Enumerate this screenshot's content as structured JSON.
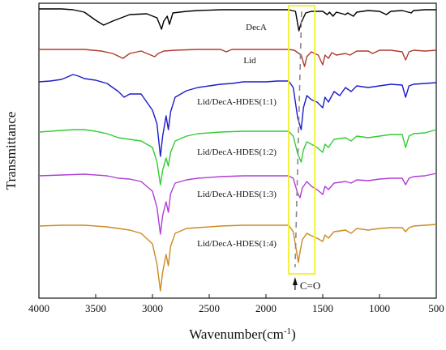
{
  "chart_data": {
    "type": "line",
    "title": "",
    "xlabel": "Wavenumber(cm",
    "xlabel_sup": "-1",
    "xlabel_end": ")",
    "ylabel": "Transmittance",
    "xlim": [
      4000,
      500
    ],
    "x_reversed": true,
    "y_ticks_shown": false,
    "grid": false,
    "x_ticks": [
      "4000",
      "3500",
      "3000",
      "2500",
      "2000",
      "1500",
      "1000",
      "500"
    ],
    "annotation": {
      "label": "C=O",
      "wavenumber": 1715,
      "box_range": [
        1800,
        1570
      ]
    },
    "series": [
      {
        "name": "DecA",
        "color": "#000000",
        "points": [
          [
            4000,
            3
          ],
          [
            3800,
            3
          ],
          [
            3700,
            4
          ],
          [
            3600,
            7
          ],
          [
            3500,
            17
          ],
          [
            3430,
            23
          ],
          [
            3350,
            18
          ],
          [
            3200,
            10
          ],
          [
            3050,
            9
          ],
          [
            2960,
            14
          ],
          [
            2920,
            28
          ],
          [
            2900,
            18
          ],
          [
            2870,
            12
          ],
          [
            2850,
            22
          ],
          [
            2820,
            8
          ],
          [
            2700,
            6
          ],
          [
            2600,
            5
          ],
          [
            2400,
            4
          ],
          [
            2200,
            4
          ],
          [
            2000,
            4
          ],
          [
            1800,
            4
          ],
          [
            1740,
            6
          ],
          [
            1710,
            30
          ],
          [
            1690,
            20
          ],
          [
            1650,
            8
          ],
          [
            1600,
            6
          ],
          [
            1500,
            6
          ],
          [
            1460,
            10
          ],
          [
            1440,
            7
          ],
          [
            1410,
            12
          ],
          [
            1380,
            7
          ],
          [
            1300,
            10
          ],
          [
            1280,
            8
          ],
          [
            1230,
            12
          ],
          [
            1200,
            7
          ],
          [
            1100,
            5
          ],
          [
            1000,
            6
          ],
          [
            940,
            10
          ],
          [
            900,
            6
          ],
          [
            800,
            5
          ],
          [
            720,
            8
          ],
          [
            700,
            5
          ],
          [
            600,
            4
          ],
          [
            500,
            4
          ]
        ]
      },
      {
        "name": "Lid",
        "color": "#b03a2e",
        "points": [
          [
            4000,
            3
          ],
          [
            3800,
            3
          ],
          [
            3600,
            3
          ],
          [
            3450,
            5
          ],
          [
            3350,
            8
          ],
          [
            3260,
            14
          ],
          [
            3200,
            8
          ],
          [
            3100,
            5
          ],
          [
            2980,
            12
          ],
          [
            2950,
            8
          ],
          [
            2900,
            5
          ],
          [
            2800,
            4
          ],
          [
            2600,
            3
          ],
          [
            2400,
            3
          ],
          [
            2350,
            6
          ],
          [
            2300,
            3
          ],
          [
            2100,
            3
          ],
          [
            1900,
            3
          ],
          [
            1800,
            3
          ],
          [
            1750,
            4
          ],
          [
            1690,
            10
          ],
          [
            1660,
            24
          ],
          [
            1640,
            12
          ],
          [
            1600,
            6
          ],
          [
            1540,
            10
          ],
          [
            1500,
            22
          ],
          [
            1480,
            10
          ],
          [
            1450,
            14
          ],
          [
            1420,
            7
          ],
          [
            1380,
            10
          ],
          [
            1300,
            8
          ],
          [
            1260,
            10
          ],
          [
            1200,
            5
          ],
          [
            1100,
            5
          ],
          [
            1060,
            8
          ],
          [
            1000,
            4
          ],
          [
            900,
            4
          ],
          [
            800,
            6
          ],
          [
            770,
            16
          ],
          [
            740,
            6
          ],
          [
            700,
            4
          ],
          [
            600,
            5
          ],
          [
            500,
            4
          ]
        ]
      },
      {
        "name": "Lid/DecA-HDES(1:1)",
        "color": "#1c1ccc",
        "points": [
          [
            4000,
            3
          ],
          [
            3900,
            2
          ],
          [
            3800,
            0
          ],
          [
            3750,
            -3
          ],
          [
            3700,
            -6
          ],
          [
            3650,
            -4
          ],
          [
            3600,
            -1
          ],
          [
            3500,
            1
          ],
          [
            3400,
            5
          ],
          [
            3300,
            15
          ],
          [
            3250,
            22
          ],
          [
            3200,
            18
          ],
          [
            3100,
            18
          ],
          [
            3000,
            38
          ],
          [
            2960,
            55
          ],
          [
            2930,
            95
          ],
          [
            2910,
            70
          ],
          [
            2880,
            45
          ],
          [
            2860,
            62
          ],
          [
            2840,
            40
          ],
          [
            2800,
            22
          ],
          [
            2700,
            14
          ],
          [
            2600,
            10
          ],
          [
            2500,
            8
          ],
          [
            2400,
            6
          ],
          [
            2300,
            5
          ],
          [
            2200,
            3
          ],
          [
            2000,
            3
          ],
          [
            1900,
            2
          ],
          [
            1800,
            2
          ],
          [
            1760,
            10
          ],
          [
            1720,
            48
          ],
          [
            1690,
            62
          ],
          [
            1670,
            35
          ],
          [
            1640,
            20
          ],
          [
            1600,
            25
          ],
          [
            1550,
            28
          ],
          [
            1500,
            35
          ],
          [
            1480,
            22
          ],
          [
            1450,
            28
          ],
          [
            1400,
            15
          ],
          [
            1350,
            20
          ],
          [
            1300,
            10
          ],
          [
            1250,
            15
          ],
          [
            1200,
            8
          ],
          [
            1100,
            10
          ],
          [
            1000,
            8
          ],
          [
            900,
            6
          ],
          [
            800,
            7
          ],
          [
            770,
            22
          ],
          [
            740,
            8
          ],
          [
            700,
            6
          ],
          [
            600,
            5
          ],
          [
            500,
            4
          ]
        ]
      },
      {
        "name": "Lid/DecA-HDES(1:2)",
        "color": "#33cc33",
        "points": [
          [
            4000,
            3
          ],
          [
            3900,
            2
          ],
          [
            3700,
            0
          ],
          [
            3600,
            0
          ],
          [
            3500,
            2
          ],
          [
            3400,
            5
          ],
          [
            3300,
            10
          ],
          [
            3200,
            12
          ],
          [
            3100,
            14
          ],
          [
            3000,
            22
          ],
          [
            2960,
            40
          ],
          [
            2930,
            68
          ],
          [
            2910,
            50
          ],
          [
            2880,
            35
          ],
          [
            2860,
            45
          ],
          [
            2840,
            28
          ],
          [
            2800,
            14
          ],
          [
            2700,
            8
          ],
          [
            2600,
            5
          ],
          [
            2400,
            3
          ],
          [
            2200,
            2
          ],
          [
            2000,
            2
          ],
          [
            1800,
            2
          ],
          [
            1760,
            8
          ],
          [
            1720,
            30
          ],
          [
            1690,
            40
          ],
          [
            1670,
            25
          ],
          [
            1640,
            15
          ],
          [
            1600,
            18
          ],
          [
            1550,
            22
          ],
          [
            1500,
            28
          ],
          [
            1480,
            18
          ],
          [
            1450,
            22
          ],
          [
            1400,
            12
          ],
          [
            1300,
            10
          ],
          [
            1250,
            14
          ],
          [
            1200,
            8
          ],
          [
            1100,
            10
          ],
          [
            1000,
            8
          ],
          [
            900,
            6
          ],
          [
            800,
            6
          ],
          [
            770,
            22
          ],
          [
            740,
            8
          ],
          [
            700,
            5
          ],
          [
            600,
            4
          ],
          [
            500,
            0
          ]
        ]
      },
      {
        "name": "Lid/DecA-HDES(1:3)",
        "color": "#b03ed6",
        "points": [
          [
            4000,
            3
          ],
          [
            3800,
            2
          ],
          [
            3600,
            1
          ],
          [
            3400,
            3
          ],
          [
            3300,
            6
          ],
          [
            3200,
            7
          ],
          [
            3100,
            10
          ],
          [
            3000,
            22
          ],
          [
            2960,
            42
          ],
          [
            2930,
            75
          ],
          [
            2910,
            52
          ],
          [
            2880,
            35
          ],
          [
            2860,
            48
          ],
          [
            2840,
            25
          ],
          [
            2800,
            12
          ],
          [
            2700,
            8
          ],
          [
            2600,
            6
          ],
          [
            2400,
            4
          ],
          [
            2200,
            3
          ],
          [
            2000,
            3
          ],
          [
            1800,
            3
          ],
          [
            1760,
            6
          ],
          [
            1720,
            25
          ],
          [
            1700,
            30
          ],
          [
            1680,
            18
          ],
          [
            1640,
            10
          ],
          [
            1600,
            16
          ],
          [
            1550,
            20
          ],
          [
            1500,
            26
          ],
          [
            1480,
            16
          ],
          [
            1450,
            20
          ],
          [
            1400,
            12
          ],
          [
            1300,
            10
          ],
          [
            1250,
            12
          ],
          [
            1200,
            8
          ],
          [
            1100,
            9
          ],
          [
            1000,
            7
          ],
          [
            900,
            6
          ],
          [
            800,
            6
          ],
          [
            770,
            14
          ],
          [
            740,
            6
          ],
          [
            700,
            4
          ],
          [
            600,
            3
          ],
          [
            500,
            0
          ]
        ]
      },
      {
        "name": "Lid/DecA-HDES(1:4)",
        "color": "#cc8a22",
        "points": [
          [
            4000,
            3
          ],
          [
            3800,
            2
          ],
          [
            3600,
            2
          ],
          [
            3400,
            4
          ],
          [
            3200,
            8
          ],
          [
            3100,
            12
          ],
          [
            3000,
            25
          ],
          [
            2960,
            50
          ],
          [
            2930,
            83
          ],
          [
            2910,
            60
          ],
          [
            2880,
            38
          ],
          [
            2860,
            52
          ],
          [
            2840,
            28
          ],
          [
            2800,
            12
          ],
          [
            2700,
            6
          ],
          [
            2600,
            5
          ],
          [
            2400,
            3
          ],
          [
            2200,
            2
          ],
          [
            2000,
            2
          ],
          [
            1800,
            2
          ],
          [
            1760,
            10
          ],
          [
            1730,
            35
          ],
          [
            1715,
            48
          ],
          [
            1700,
            35
          ],
          [
            1680,
            20
          ],
          [
            1640,
            12
          ],
          [
            1600,
            15
          ],
          [
            1550,
            18
          ],
          [
            1500,
            22
          ],
          [
            1480,
            14
          ],
          [
            1450,
            18
          ],
          [
            1400,
            10
          ],
          [
            1300,
            8
          ],
          [
            1250,
            12
          ],
          [
            1200,
            6
          ],
          [
            1100,
            8
          ],
          [
            1000,
            6
          ],
          [
            900,
            5
          ],
          [
            800,
            5
          ],
          [
            770,
            10
          ],
          [
            740,
            5
          ],
          [
            700,
            3
          ],
          [
            600,
            2
          ],
          [
            500,
            1
          ]
        ]
      }
    ]
  }
}
